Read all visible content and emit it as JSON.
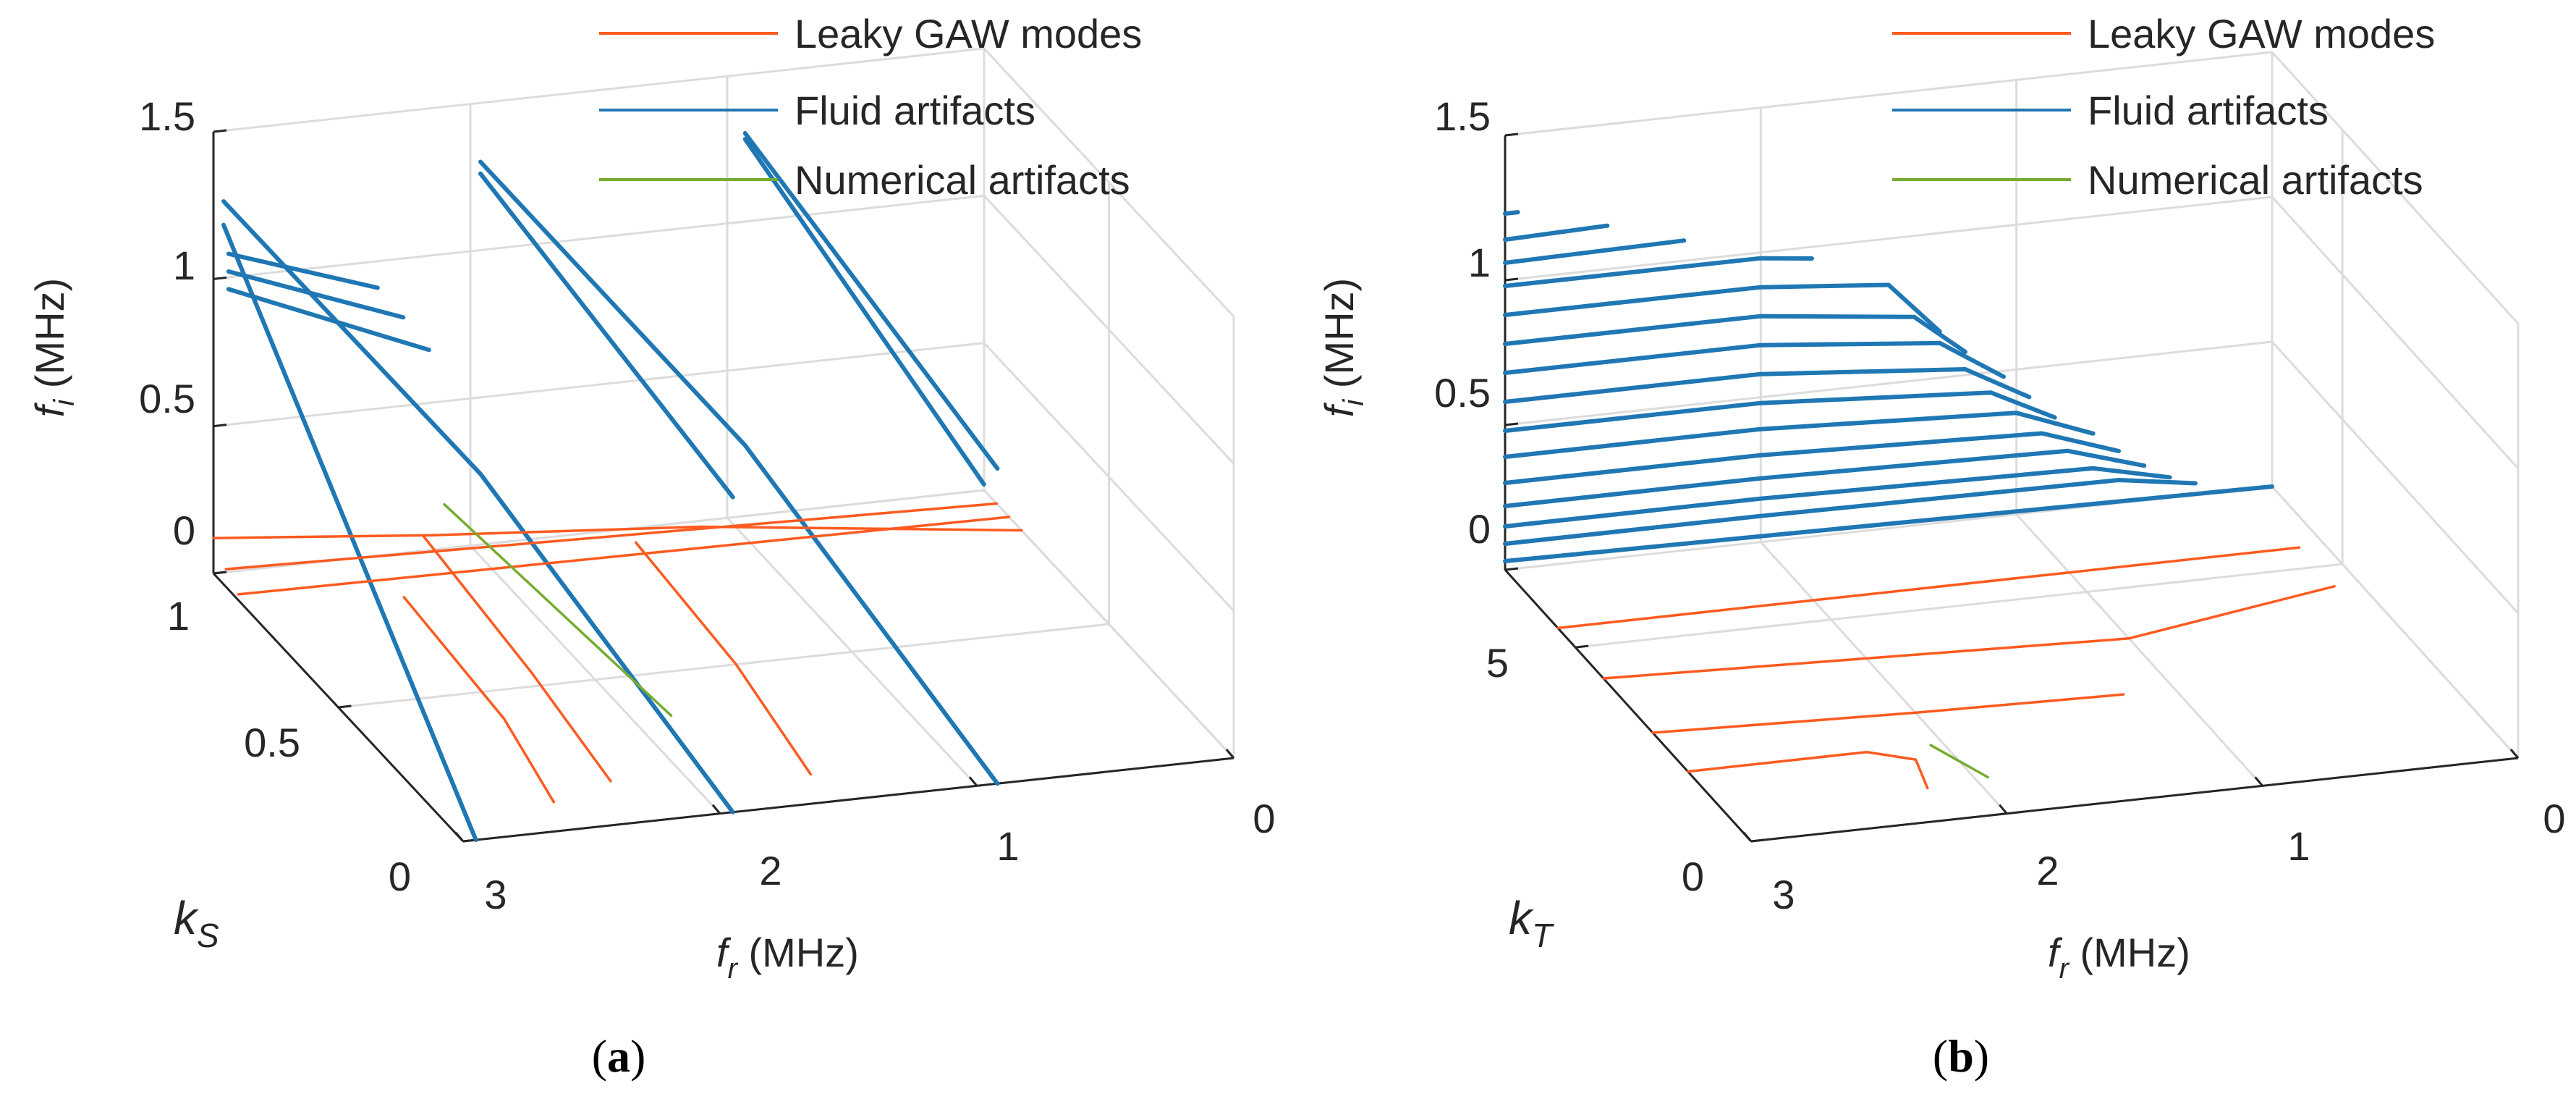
{
  "figure": {
    "panels": [
      {
        "caption_open": "(",
        "caption_letter": "a",
        "caption_close": ")"
      },
      {
        "caption_open": "(",
        "caption_letter": "b",
        "caption_close": ")"
      }
    ]
  },
  "colors": {
    "leaky": "#ff5a1f",
    "fluid": "#1f77b4",
    "numerical": "#77ac30",
    "grid": "#dcdcdc",
    "axis": "#262626"
  },
  "chart_data": [
    {
      "type": "line3d",
      "title": "",
      "zlabel_main": "f",
      "zlabel_sub": "i",
      "zlabel_unit": " (MHz)",
      "xlabel_main": "f",
      "xlabel_sub": "r",
      "xlabel_unit": " (MHz)",
      "ylabel_main": "k",
      "ylabel_sub": "S",
      "ylabel_unit": "",
      "x_ticks": [
        "3",
        "2",
        "1",
        "0"
      ],
      "y_ticks": [
        "0",
        "0.5",
        "1"
      ],
      "z_ticks": [
        "0",
        "0.5",
        "1",
        "1.5"
      ],
      "xlim": [
        0,
        3
      ],
      "ylim": [
        0,
        1
      ],
      "zlim": [
        0,
        1.5
      ],
      "legend": {
        "position": "top-right",
        "entries": [
          {
            "label": "Leaky GAW modes",
            "color_key": "leaky"
          },
          {
            "label": "Fluid artifacts",
            "color_key": "fluid"
          },
          {
            "label": "Numerical artifacts",
            "color_key": "numerical"
          }
        ]
      },
      "series": [
        {
          "name": "Fluid artifacts",
          "color_key": "fluid",
          "lines": [
            {
              "x": [
                2.98,
                2.2
              ],
              "y": [
                0.96,
                0.96
              ],
              "z": [
                1.0,
                0.72
              ]
            },
            {
              "x": [
                2.98,
                2.3
              ],
              "y": [
                0.96,
                0.96
              ],
              "z": [
                1.06,
                0.84
              ]
            },
            {
              "x": [
                2.98,
                2.4
              ],
              "y": [
                0.96,
                0.96
              ],
              "z": [
                1.12,
                0.95
              ]
            },
            {
              "x": [
                2.98,
                1.98
              ],
              "y": [
                0.98,
                0.98
              ],
              "z": [
                1.28,
                0.26
              ]
            },
            {
              "x": [
                1.98,
                1.95
              ],
              "y": [
                0.98,
                0.0
              ],
              "z": [
                1.28,
                1.07
              ]
            },
            {
              "x": [
                1.98,
                0.95
              ],
              "y": [
                0.98,
                0.98
              ],
              "z": [
                1.32,
                0.26
              ]
            },
            {
              "x": [
                0.95,
                0.92
              ],
              "y": [
                0.98,
                0.0
              ],
              "z": [
                1.32,
                1.07
              ]
            },
            {
              "x": [
                0.95,
                0.02
              ],
              "y": [
                0.98,
                0.98
              ],
              "z": [
                1.3,
                0.04
              ]
            },
            {
              "x": [
                2.98,
                2.95
              ],
              "y": [
                0.98,
                0.0
              ],
              "z": [
                1.2,
                0.0
              ]
            },
            {
              "x": [
                1.98,
                1.95
              ],
              "y": [
                0.98,
                0.0
              ],
              "z": [
                0.26,
                0.0
              ]
            },
            {
              "x": [
                0.95,
                0.92
              ],
              "y": [
                0.98,
                0.0
              ],
              "z": [
                0.26,
                0.0
              ]
            }
          ]
        },
        {
          "name": "Leaky GAW modes",
          "color_key": "leaky",
          "lines": [
            {
              "x": [
                3.0,
                2.2,
                1.2,
                0.0
              ],
              "y": [
                1.0,
                0.95,
                0.9,
                0.85
              ],
              "z": [
                0.12,
                0.1,
                0.08,
                0.0
              ]
            },
            {
              "x": [
                3.0,
                0.0
              ],
              "y": [
                0.95,
                0.95
              ],
              "z": [
                0.06,
                0.0
              ]
            },
            {
              "x": [
                3.0,
                0.0
              ],
              "y": [
                0.9,
                0.9
              ],
              "z": [
                0.02,
                0.0
              ]
            },
            {
              "x": [
                2.55,
                2.5,
                2.55
              ],
              "y": [
                0.7,
                0.35,
                0.1
              ],
              "z": [
                0.15,
                0.05,
                0.0
              ]
            },
            {
              "x": [
                2.28,
                2.25,
                2.28
              ],
              "y": [
                0.9,
                0.5,
                0.15
              ],
              "z": [
                0.15,
                0.05,
                0.0
              ]
            },
            {
              "x": [
                1.55,
                1.5,
                1.55
              ],
              "y": [
                0.8,
                0.45,
                0.1
              ],
              "z": [
                0.15,
                0.05,
                0.0
              ]
            }
          ]
        },
        {
          "name": "Numerical artifacts",
          "color_key": "numerical",
          "lines": [
            {
              "x": [
                2.15,
                1.85
              ],
              "y": [
                0.95,
                0.35
              ],
              "z": [
                0.2,
                0.0
              ]
            }
          ]
        }
      ]
    },
    {
      "type": "line3d",
      "title": "",
      "zlabel_main": "f",
      "zlabel_sub": "i",
      "zlabel_unit": " (MHz)",
      "xlabel_main": "f",
      "xlabel_sub": "r",
      "xlabel_unit": " (MHz)",
      "ylabel_main": "k",
      "ylabel_sub": "T",
      "ylabel_unit": "",
      "x_ticks": [
        "3",
        "2",
        "1",
        "0"
      ],
      "y_ticks": [
        "0",
        "5"
      ],
      "z_ticks": [
        "0",
        "0.5",
        "1",
        "1.5"
      ],
      "xlim": [
        0,
        3
      ],
      "ylim": [
        0,
        7
      ],
      "zlim": [
        0,
        1.5
      ],
      "legend": {
        "position": "top-right",
        "entries": [
          {
            "label": "Leaky GAW modes",
            "color_key": "leaky"
          },
          {
            "label": "Fluid artifacts",
            "color_key": "fluid"
          },
          {
            "label": "Numerical artifacts",
            "color_key": "numerical"
          }
        ]
      },
      "series": [
        {
          "name": "Fluid artifacts",
          "color_key": "fluid",
          "lines": [
            {
              "x": [
                3.0,
                2.95
              ],
              "y": [
                7.0,
                7.0
              ],
              "z": [
                1.23,
                1.23
              ]
            },
            {
              "x": [
                3.0,
                2.6
              ],
              "y": [
                7.0,
                7.0
              ],
              "z": [
                1.14,
                1.15
              ]
            },
            {
              "x": [
                3.0,
                2.3
              ],
              "y": [
                7.0,
                7.0
              ],
              "z": [
                1.06,
                1.07
              ]
            },
            {
              "x": [
                3.0,
                2.0,
                1.8
              ],
              "y": [
                7.0,
                7.0,
                7.0
              ],
              "z": [
                0.98,
                0.98,
                0.96
              ]
            },
            {
              "x": [
                3.0,
                2.0,
                1.5,
                1.3
              ],
              "y": [
                7.0,
                7.0,
                7.0,
                7.0
              ],
              "z": [
                0.88,
                0.88,
                0.84,
                0.66
              ]
            },
            {
              "x": [
                3.0,
                2.0,
                1.4,
                1.2
              ],
              "y": [
                7.0,
                7.0,
                7.0,
                7.0
              ],
              "z": [
                0.78,
                0.78,
                0.72,
                0.58
              ]
            },
            {
              "x": [
                3.0,
                2.0,
                1.3,
                1.05
              ],
              "y": [
                7.0,
                7.0,
                7.0,
                7.0
              ],
              "z": [
                0.68,
                0.68,
                0.62,
                0.48
              ]
            },
            {
              "x": [
                3.0,
                2.0,
                1.2,
                0.95
              ],
              "y": [
                7.0,
                7.0,
                7.0,
                7.0
              ],
              "z": [
                0.58,
                0.58,
                0.52,
                0.4
              ]
            },
            {
              "x": [
                3.0,
                2.0,
                1.1,
                0.85
              ],
              "y": [
                7.0,
                7.0,
                7.0,
                7.0
              ],
              "z": [
                0.48,
                0.48,
                0.43,
                0.32
              ]
            },
            {
              "x": [
                3.0,
                2.0,
                1.0,
                0.7
              ],
              "y": [
                7.0,
                7.0,
                7.0,
                7.0
              ],
              "z": [
                0.39,
                0.39,
                0.35,
                0.25
              ]
            },
            {
              "x": [
                3.0,
                2.0,
                0.9,
                0.6
              ],
              "y": [
                7.0,
                7.0,
                7.0,
                7.0
              ],
              "z": [
                0.3,
                0.3,
                0.27,
                0.18
              ]
            },
            {
              "x": [
                3.0,
                2.0,
                0.8,
                0.5
              ],
              "y": [
                7.0,
                7.0,
                7.0,
                7.0
              ],
              "z": [
                0.22,
                0.22,
                0.2,
                0.12
              ]
            },
            {
              "x": [
                3.0,
                2.0,
                0.7,
                0.4
              ],
              "y": [
                7.0,
                7.0,
                7.0,
                7.0
              ],
              "z": [
                0.15,
                0.15,
                0.13,
                0.07
              ]
            },
            {
              "x": [
                3.0,
                2.0,
                0.6,
                0.3
              ],
              "y": [
                7.0,
                7.0,
                7.0,
                7.0
              ],
              "z": [
                0.09,
                0.09,
                0.08,
                0.04
              ]
            },
            {
              "x": [
                3.0,
                0.0
              ],
              "y": [
                7.0,
                7.0
              ],
              "z": [
                0.03,
                0.0
              ]
            }
          ]
        },
        {
          "name": "Leaky GAW modes",
          "color_key": "leaky",
          "lines": [
            {
              "x": [
                3.0,
                2.0,
                1.0,
                0.1
              ],
              "y": [
                5.5,
                5.5,
                5.5,
                5.5
              ],
              "z": [
                0,
                0,
                0,
                0
              ]
            },
            {
              "x": [
                3.0,
                2.0,
                1.0,
                0.1
              ],
              "y": [
                4.2,
                4.0,
                3.8,
                4.5
              ],
              "z": [
                0,
                0,
                0,
                0
              ]
            },
            {
              "x": [
                3.0,
                2.0,
                1.2
              ],
              "y": [
                2.8,
                2.6,
                2.5
              ],
              "z": [
                0,
                0,
                0
              ]
            },
            {
              "x": [
                3.0,
                2.3,
                2.15,
                2.2
              ],
              "y": [
                1.8,
                1.8,
                1.5,
                0.8
              ],
              "z": [
                0,
                0,
                0,
                0
              ]
            }
          ]
        },
        {
          "name": "Numerical artifacts",
          "color_key": "numerical",
          "lines": [
            {
              "x": [
                2.05,
                1.95
              ],
              "y": [
                1.8,
                0.9
              ],
              "z": [
                0,
                0
              ]
            }
          ]
        }
      ]
    }
  ]
}
